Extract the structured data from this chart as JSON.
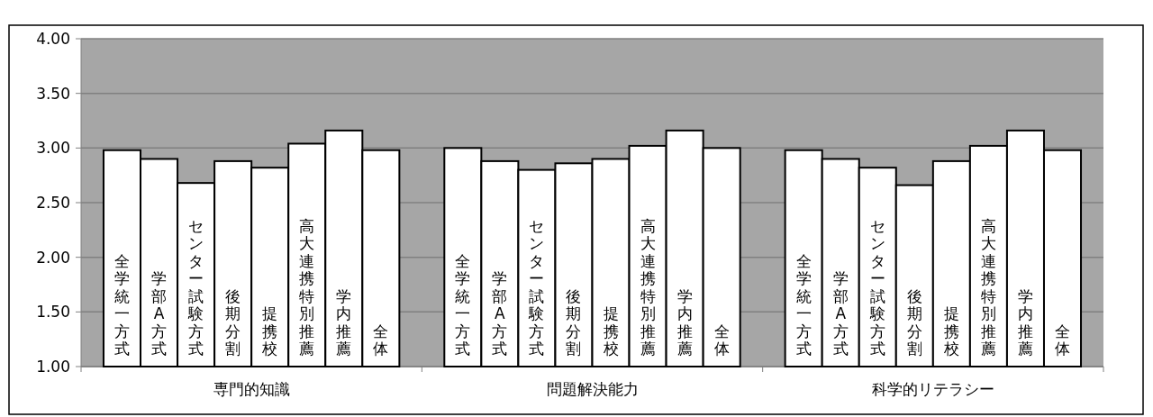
{
  "chart_data": {
    "type": "bar",
    "categories": [
      "専門的知識",
      "問題解決能力",
      "科学的リテラシー"
    ],
    "series": [
      {
        "name": "全学統一方式",
        "color": "#ffffff",
        "values": [
          2.98,
          3.0,
          2.98
        ]
      },
      {
        "name": "学部A方式",
        "color": "#ffffff",
        "values": [
          2.9,
          2.88,
          2.9
        ]
      },
      {
        "name": "センター試験方式",
        "color": "#ffffff",
        "values": [
          2.68,
          2.8,
          2.82
        ]
      },
      {
        "name": "後期分割",
        "color": "#ffffff",
        "values": [
          2.88,
          2.86,
          2.66
        ]
      },
      {
        "name": "提携校",
        "color": "#ffffff",
        "values": [
          2.82,
          2.9,
          2.88
        ]
      },
      {
        "name": "高大連携特別推薦",
        "color": "#ffffff",
        "values": [
          3.04,
          3.02,
          3.02
        ]
      },
      {
        "name": "学内推薦",
        "color": "#ffffff",
        "values": [
          3.16,
          3.16,
          3.16
        ]
      },
      {
        "name": "全体",
        "color": "#ffffff",
        "values": [
          2.98,
          3.0,
          2.98
        ]
      }
    ],
    "ylim": [
      1.0,
      4.0
    ],
    "yticks": [
      {
        "value": 1.0,
        "label": "1.00"
      },
      {
        "value": 1.5,
        "label": "1.50"
      },
      {
        "value": 2.0,
        "label": "2.00"
      },
      {
        "value": 2.5,
        "label": "2.50"
      },
      {
        "value": 3.0,
        "label": "3.00"
      },
      {
        "value": 3.5,
        "label": "3.50"
      },
      {
        "value": 4.0,
        "label": "4.00"
      }
    ],
    "grid": "y"
  }
}
